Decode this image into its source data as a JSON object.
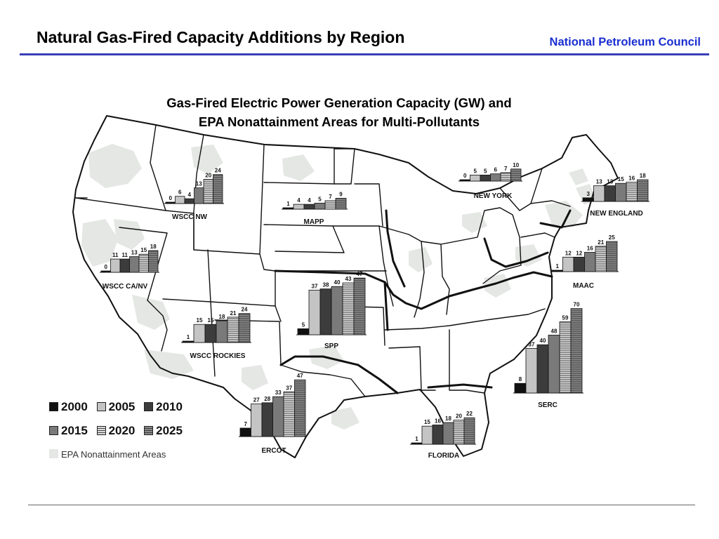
{
  "header": {
    "title": "Natural Gas-Fired Capacity Additions by Region",
    "org": "National Petroleum Council"
  },
  "colors": {
    "rule": "#3a3fb8",
    "org_text": "#1a2fd0",
    "nonattainment": "#e4e7e4"
  },
  "chart_data": {
    "type": "bar",
    "title_lines": [
      "Gas-Fired Electric Power Generation Capacity (GW) and",
      "EPA Nonattainment Areas for Multi-Pollutants"
    ],
    "categories": [
      "2000",
      "2005",
      "2010",
      "2015",
      "2020",
      "2025"
    ],
    "series_styles": [
      "black",
      "light-gray",
      "dark-gray",
      "mid-gray",
      "striped-light",
      "striped-dark"
    ],
    "regions": [
      {
        "name": "WSCC NW",
        "values": [
          0,
          6,
          4,
          13,
          20,
          24
        ]
      },
      {
        "name": "MAPP",
        "values": [
          1,
          4,
          4,
          5,
          7,
          9
        ]
      },
      {
        "name": "NEW YORK",
        "values": [
          0,
          5,
          5,
          6,
          7,
          10
        ]
      },
      {
        "name": "NEW ENGLAND",
        "values": [
          3,
          13,
          13,
          15,
          16,
          18
        ]
      },
      {
        "name": "WSCC CA/NV",
        "values": [
          0,
          11,
          11,
          13,
          15,
          18
        ]
      },
      {
        "name": "MAAC",
        "values": [
          1,
          12,
          12,
          16,
          21,
          25
        ]
      },
      {
        "name": "SPP",
        "values": [
          5,
          37,
          38,
          40,
          43,
          47
        ]
      },
      {
        "name": "WSCC ROCKIES",
        "values": [
          1,
          15,
          15,
          18,
          21,
          24
        ]
      },
      {
        "name": "SERC",
        "values": [
          8,
          37,
          40,
          48,
          59,
          70
        ]
      },
      {
        "name": "ERCOT",
        "values": [
          7,
          27,
          28,
          33,
          37,
          47
        ]
      },
      {
        "name": "FLORIDA",
        "values": [
          1,
          15,
          16,
          18,
          20,
          22
        ]
      }
    ],
    "legend": {
      "placement": "bottom-left",
      "items": [
        "2000",
        "2005",
        "2010",
        "2015",
        "2020",
        "2025"
      ],
      "nonattainment_label": "EPA Nonattainment Areas"
    }
  }
}
